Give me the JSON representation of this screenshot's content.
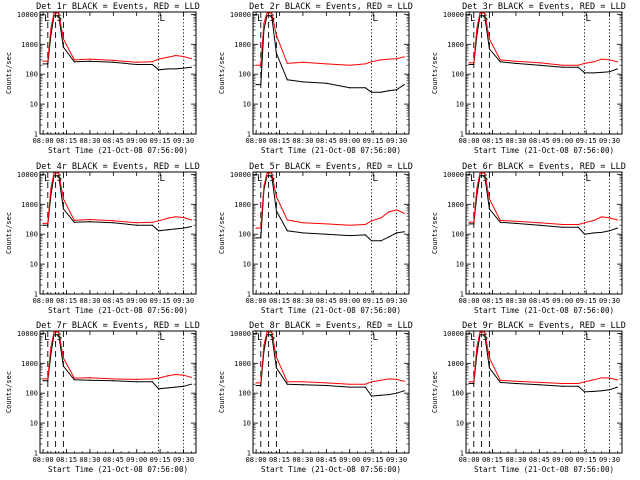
{
  "shared": {
    "xlabel": "Start Time (21-Oct-08 07:56:00)",
    "ylabel": "Counts/sec",
    "x_tick_labels": [
      "08:00",
      "08:15",
      "08:30",
      "08:45",
      "09:00",
      "09:15",
      "09:30"
    ],
    "y_tick_labels": [
      "1",
      "10",
      "100",
      "1000",
      "10000"
    ],
    "marker_labels": [
      "L",
      "S",
      "L"
    ],
    "colors": {
      "events": "#000000",
      "lld": "#ff0000",
      "axes": "#000000"
    }
  },
  "chart_data": [
    {
      "type": "line",
      "title": "Det 1r BLACK = Events, RED = LLD",
      "x": [
        "08:00",
        "08:03",
        "08:05",
        "08:07",
        "08:10",
        "08:13",
        "08:20",
        "08:30",
        "08:45",
        "09:00",
        "09:10",
        "09:14",
        "09:20",
        "09:25",
        "09:30",
        "09:35"
      ],
      "xlim": [
        "07:58",
        "09:38"
      ],
      "ylim": [
        1,
        12000
      ],
      "yscale": "log",
      "series": [
        {
          "name": "BLACK = Events",
          "color": "#000000",
          "values": [
            220,
            220,
            2000,
            9000,
            9000,
            800,
            260,
            270,
            250,
            210,
            210,
            140,
            150,
            150,
            160,
            170
          ]
        },
        {
          "name": "RED = LLD",
          "color": "#ff0000",
          "values": [
            270,
            270,
            3500,
            11000,
            11000,
            1500,
            300,
            320,
            290,
            250,
            260,
            320,
            370,
            420,
            390,
            330
          ]
        }
      ],
      "vlines": [
        {
          "x": "08:03",
          "style": "dashed"
        },
        {
          "x": "08:08",
          "style": "dashed"
        },
        {
          "x": "08:13",
          "style": "dashed"
        },
        {
          "x": "09:14",
          "style": "dotted"
        },
        {
          "x": "09:30",
          "style": "dotted"
        }
      ],
      "markers": [
        {
          "x": "08:00",
          "label": "L"
        },
        {
          "x": "08:08",
          "label": "S"
        },
        {
          "x": "09:14",
          "label": "L"
        }
      ]
    },
    {
      "type": "line",
      "title": "Det 2r BLACK = Events, RED = LLD",
      "x": [
        "08:00",
        "08:03",
        "08:05",
        "08:07",
        "08:10",
        "08:13",
        "08:20",
        "08:30",
        "08:45",
        "09:00",
        "09:10",
        "09:14",
        "09:20",
        "09:25",
        "09:30",
        "09:35"
      ],
      "xlim": [
        "07:58",
        "09:38"
      ],
      "ylim": [
        1,
        12000
      ],
      "yscale": "log",
      "series": [
        {
          "name": "BLACK = Events",
          "color": "#000000",
          "values": [
            45,
            45,
            3000,
            9000,
            9000,
            500,
            65,
            55,
            50,
            35,
            35,
            25,
            25,
            28,
            30,
            45
          ]
        },
        {
          "name": "RED = LLD",
          "color": "#ff0000",
          "values": [
            200,
            200,
            5000,
            11000,
            11000,
            2000,
            230,
            250,
            220,
            200,
            220,
            260,
            300,
            320,
            330,
            380
          ]
        }
      ],
      "vlines": [
        {
          "x": "08:03",
          "style": "dashed"
        },
        {
          "x": "08:08",
          "style": "dashed"
        },
        {
          "x": "08:13",
          "style": "dashed"
        },
        {
          "x": "09:14",
          "style": "dotted"
        },
        {
          "x": "09:30",
          "style": "dotted"
        }
      ],
      "markers": [
        {
          "x": "08:00",
          "label": "L"
        },
        {
          "x": "08:08",
          "label": "S"
        },
        {
          "x": "09:14",
          "label": "L"
        }
      ]
    },
    {
      "type": "line",
      "title": "Det 3r BLACK = Events, RED = LLD",
      "x": [
        "08:00",
        "08:03",
        "08:05",
        "08:07",
        "08:10",
        "08:13",
        "08:20",
        "08:30",
        "08:45",
        "09:00",
        "09:10",
        "09:14",
        "09:20",
        "09:25",
        "09:30",
        "09:35"
      ],
      "xlim": [
        "07:58",
        "09:38"
      ],
      "ylim": [
        1,
        12000
      ],
      "yscale": "log",
      "series": [
        {
          "name": "BLACK = Events",
          "color": "#000000",
          "values": [
            210,
            210,
            2000,
            9000,
            9000,
            700,
            260,
            230,
            200,
            170,
            170,
            110,
            110,
            115,
            120,
            150
          ]
        },
        {
          "name": "RED = LLD",
          "color": "#ff0000",
          "values": [
            240,
            240,
            3500,
            11000,
            11000,
            1500,
            300,
            270,
            240,
            200,
            200,
            230,
            260,
            320,
            300,
            260
          ]
        }
      ],
      "vlines": [
        {
          "x": "08:03",
          "style": "dashed"
        },
        {
          "x": "08:08",
          "style": "dashed"
        },
        {
          "x": "08:13",
          "style": "dashed"
        },
        {
          "x": "09:14",
          "style": "dotted"
        },
        {
          "x": "09:30",
          "style": "dotted"
        }
      ],
      "markers": [
        {
          "x": "08:00",
          "label": "L"
        },
        {
          "x": "08:08",
          "label": "S"
        },
        {
          "x": "09:14",
          "label": "L"
        }
      ]
    },
    {
      "type": "line",
      "title": "Det 4r BLACK = Events, RED = LLD",
      "x": [
        "08:00",
        "08:03",
        "08:05",
        "08:07",
        "08:10",
        "08:13",
        "08:20",
        "08:30",
        "08:45",
        "09:00",
        "09:10",
        "09:14",
        "09:20",
        "09:25",
        "09:30",
        "09:35"
      ],
      "xlim": [
        "07:58",
        "09:38"
      ],
      "ylim": [
        1,
        12000
      ],
      "yscale": "log",
      "series": [
        {
          "name": "BLACK = Events",
          "color": "#000000",
          "values": [
            200,
            200,
            2000,
            9000,
            9000,
            700,
            250,
            260,
            240,
            200,
            200,
            130,
            140,
            150,
            160,
            180
          ]
        },
        {
          "name": "RED = LLD",
          "color": "#ff0000",
          "values": [
            230,
            230,
            3500,
            11000,
            11000,
            1500,
            290,
            310,
            280,
            240,
            250,
            280,
            340,
            380,
            360,
            300
          ]
        }
      ],
      "vlines": [
        {
          "x": "08:03",
          "style": "dashed"
        },
        {
          "x": "08:08",
          "style": "dashed"
        },
        {
          "x": "08:13",
          "style": "dashed"
        },
        {
          "x": "09:14",
          "style": "dotted"
        },
        {
          "x": "09:30",
          "style": "dotted"
        }
      ],
      "markers": [
        {
          "x": "08:00",
          "label": "L"
        },
        {
          "x": "08:08",
          "label": "S"
        },
        {
          "x": "09:14",
          "label": "L"
        }
      ]
    },
    {
      "type": "line",
      "title": "Det 5r BLACK = Events, RED = LLD",
      "x": [
        "08:00",
        "08:03",
        "08:05",
        "08:07",
        "08:10",
        "08:13",
        "08:20",
        "08:30",
        "08:45",
        "09:00",
        "09:10",
        "09:14",
        "09:20",
        "09:25",
        "09:30",
        "09:35"
      ],
      "xlim": [
        "07:58",
        "09:38"
      ],
      "ylim": [
        1,
        12000
      ],
      "yscale": "log",
      "series": [
        {
          "name": "BLACK = Events",
          "color": "#000000",
          "values": [
            75,
            75,
            3000,
            9000,
            9000,
            600,
            130,
            110,
            100,
            90,
            95,
            60,
            60,
            80,
            110,
            120
          ]
        },
        {
          "name": "RED = LLD",
          "color": "#ff0000",
          "values": [
            160,
            160,
            4000,
            11000,
            11000,
            1800,
            300,
            240,
            220,
            200,
            210,
            280,
            350,
            550,
            650,
            500
          ]
        }
      ],
      "vlines": [
        {
          "x": "08:03",
          "style": "dashed"
        },
        {
          "x": "08:08",
          "style": "dashed"
        },
        {
          "x": "08:13",
          "style": "dashed"
        },
        {
          "x": "09:14",
          "style": "dotted"
        },
        {
          "x": "09:30",
          "style": "dotted"
        }
      ],
      "markers": [
        {
          "x": "08:00",
          "label": "L"
        },
        {
          "x": "08:08",
          "label": "S"
        },
        {
          "x": "09:14",
          "label": "L"
        }
      ]
    },
    {
      "type": "line",
      "title": "Det 6r BLACK = Events, RED = LLD",
      "x": [
        "08:00",
        "08:03",
        "08:05",
        "08:07",
        "08:10",
        "08:13",
        "08:20",
        "08:30",
        "08:45",
        "09:00",
        "09:10",
        "09:14",
        "09:20",
        "09:25",
        "09:30",
        "09:35"
      ],
      "xlim": [
        "07:58",
        "09:38"
      ],
      "ylim": [
        1,
        12000
      ],
      "yscale": "log",
      "series": [
        {
          "name": "BLACK = Events",
          "color": "#000000",
          "values": [
            220,
            220,
            2000,
            9000,
            9000,
            700,
            250,
            230,
            200,
            170,
            170,
            100,
            110,
            115,
            130,
            160
          ]
        },
        {
          "name": "RED = LLD",
          "color": "#ff0000",
          "values": [
            250,
            250,
            3500,
            11000,
            11000,
            1500,
            290,
            270,
            240,
            210,
            210,
            240,
            290,
            380,
            350,
            300
          ]
        }
      ],
      "vlines": [
        {
          "x": "08:03",
          "style": "dashed"
        },
        {
          "x": "08:08",
          "style": "dashed"
        },
        {
          "x": "08:13",
          "style": "dashed"
        },
        {
          "x": "09:14",
          "style": "dotted"
        },
        {
          "x": "09:30",
          "style": "dotted"
        }
      ],
      "markers": [
        {
          "x": "08:00",
          "label": "L"
        },
        {
          "x": "08:08",
          "label": "S"
        },
        {
          "x": "09:14",
          "label": "L"
        }
      ]
    },
    {
      "type": "line",
      "title": "Det 7r BLACK = Events, RED = LLD",
      "x": [
        "08:00",
        "08:03",
        "08:05",
        "08:07",
        "08:10",
        "08:13",
        "08:20",
        "08:30",
        "08:45",
        "09:00",
        "09:10",
        "09:14",
        "09:20",
        "09:25",
        "09:30",
        "09:35"
      ],
      "xlim": [
        "07:58",
        "09:38"
      ],
      "ylim": [
        1,
        12000
      ],
      "yscale": "log",
      "series": [
        {
          "name": "BLACK = Events",
          "color": "#000000",
          "values": [
            260,
            260,
            2000,
            9000,
            9000,
            800,
            280,
            270,
            260,
            240,
            240,
            140,
            150,
            160,
            170,
            200
          ]
        },
        {
          "name": "RED = LLD",
          "color": "#ff0000",
          "values": [
            300,
            300,
            3500,
            11000,
            11000,
            1500,
            320,
            330,
            300,
            290,
            300,
            320,
            380,
            420,
            400,
            340
          ]
        }
      ],
      "vlines": [
        {
          "x": "08:03",
          "style": "dashed"
        },
        {
          "x": "08:08",
          "style": "dashed"
        },
        {
          "x": "08:13",
          "style": "dashed"
        },
        {
          "x": "09:14",
          "style": "dotted"
        },
        {
          "x": "09:30",
          "style": "dotted"
        }
      ],
      "markers": [
        {
          "x": "08:00",
          "label": "L"
        },
        {
          "x": "08:08",
          "label": "S"
        },
        {
          "x": "09:14",
          "label": "L"
        }
      ]
    },
    {
      "type": "line",
      "title": "Det 8r BLACK = Events, RED = LLD",
      "x": [
        "08:00",
        "08:03",
        "08:05",
        "08:07",
        "08:10",
        "08:13",
        "08:20",
        "08:30",
        "08:45",
        "09:00",
        "09:10",
        "09:14",
        "09:20",
        "09:25",
        "09:30",
        "09:35"
      ],
      "xlim": [
        "07:58",
        "09:38"
      ],
      "ylim": [
        1,
        12000
      ],
      "yscale": "log",
      "series": [
        {
          "name": "BLACK = Events",
          "color": "#000000",
          "values": [
            180,
            180,
            2500,
            9000,
            9000,
            700,
            200,
            190,
            180,
            160,
            160,
            80,
            85,
            90,
            100,
            120
          ]
        },
        {
          "name": "RED = LLD",
          "color": "#ff0000",
          "values": [
            220,
            220,
            4000,
            11000,
            11000,
            1600,
            240,
            240,
            220,
            200,
            200,
            240,
            270,
            300,
            290,
            250
          ]
        }
      ],
      "vlines": [
        {
          "x": "08:03",
          "style": "dashed"
        },
        {
          "x": "08:08",
          "style": "dashed"
        },
        {
          "x": "08:13",
          "style": "dashed"
        },
        {
          "x": "09:14",
          "style": "dotted"
        },
        {
          "x": "09:30",
          "style": "dotted"
        }
      ],
      "markers": [
        {
          "x": "08:00",
          "label": "L"
        },
        {
          "x": "08:08",
          "label": "S"
        },
        {
          "x": "09:14",
          "label": "L"
        }
      ]
    },
    {
      "type": "line",
      "title": "Det 9r BLACK = Events, RED = LLD",
      "x": [
        "08:00",
        "08:03",
        "08:05",
        "08:07",
        "08:10",
        "08:13",
        "08:20",
        "08:30",
        "08:45",
        "09:00",
        "09:10",
        "09:14",
        "09:20",
        "09:25",
        "09:30",
        "09:35"
      ],
      "xlim": [
        "07:58",
        "09:38"
      ],
      "ylim": [
        1,
        12000
      ],
      "yscale": "log",
      "series": [
        {
          "name": "BLACK = Events",
          "color": "#000000",
          "values": [
            210,
            210,
            2000,
            9000,
            9000,
            700,
            230,
            210,
            190,
            170,
            170,
            110,
            115,
            120,
            130,
            160
          ]
        },
        {
          "name": "RED = LLD",
          "color": "#ff0000",
          "values": [
            240,
            240,
            3500,
            11000,
            11000,
            1500,
            270,
            250,
            230,
            210,
            210,
            240,
            280,
            330,
            320,
            280
          ]
        }
      ],
      "vlines": [
        {
          "x": "08:03",
          "style": "dashed"
        },
        {
          "x": "08:08",
          "style": "dashed"
        },
        {
          "x": "08:13",
          "style": "dashed"
        },
        {
          "x": "09:14",
          "style": "dotted"
        },
        {
          "x": "09:30",
          "style": "dotted"
        }
      ],
      "markers": [
        {
          "x": "08:00",
          "label": "L"
        },
        {
          "x": "08:08",
          "label": "S"
        },
        {
          "x": "09:14",
          "label": "L"
        }
      ]
    }
  ]
}
